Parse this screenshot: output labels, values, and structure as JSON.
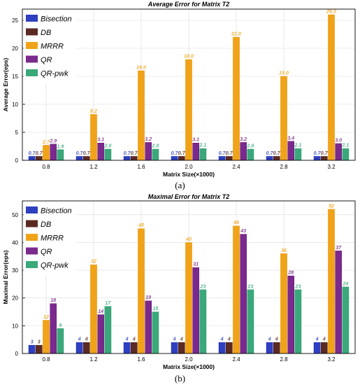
{
  "captions": {
    "a": "(a)",
    "b": "(b)"
  },
  "colors": {
    "Bisection": "#2e3fbf",
    "DB": "#5a2a22",
    "MRRR": "#f0a318",
    "QR": "#7a2a8c",
    "QR-pwk": "#3aa87a"
  },
  "chart_data": [
    {
      "type": "bar",
      "title": "Average Error for Matrix T2",
      "xlabel": "Matrix Size(×1000)",
      "ylabel": "Average Error(eps)",
      "ylim": [
        0,
        27
      ],
      "yticks": [
        "0",
        "5",
        "10",
        "15",
        "20",
        "25"
      ],
      "ytick_values": [
        0,
        5,
        10,
        15,
        20,
        25
      ],
      "categories": [
        "0.8",
        "1.2",
        "1.6",
        "2.0",
        "2.4",
        "2.8",
        "3.2"
      ],
      "legend_position": "top-left",
      "grid": true,
      "series": [
        {
          "name": "Bisection",
          "values": [
            0.7,
            0.7,
            0.7,
            0.7,
            0.7,
            0.7,
            0.7
          ],
          "labels": [
            "0.7",
            "0.7",
            "0.7",
            "0.7",
            "0.7",
            "0.7",
            "0.7"
          ]
        },
        {
          "name": "DB",
          "values": [
            0.7,
            0.7,
            0.7,
            0.7,
            0.7,
            0.7,
            0.7
          ],
          "labels": [
            "0.7",
            "0.7",
            "0.7",
            "0.7",
            "0.7",
            "0.7",
            "0.7"
          ]
        },
        {
          "name": "MRRR",
          "values": [
            2.7,
            8.2,
            16.0,
            18.0,
            22.0,
            15.0,
            26.0
          ],
          "labels": [
            "2.7",
            "8.2",
            "16.0",
            "18.0",
            "22.0",
            "15.0",
            "26.0"
          ]
        },
        {
          "name": "QR",
          "values": [
            2.9,
            3.1,
            3.2,
            3.1,
            3.2,
            3.4,
            3.0
          ],
          "labels": [
            "2.9",
            "3.1",
            "3.2",
            "3.1",
            "3.2",
            "3.4",
            "3.0"
          ]
        },
        {
          "name": "QR-pwk",
          "values": [
            1.9,
            2.0,
            2.0,
            2.1,
            2.0,
            2.1,
            2.1
          ],
          "labels": [
            "1.9",
            "2.0",
            "2.0",
            "2.1",
            "2.0",
            "2.1",
            "2.1"
          ]
        }
      ]
    },
    {
      "type": "bar",
      "title": "Maximal Error for Matrix T2",
      "xlabel": "Matrix Size(×1000)",
      "ylabel": "Maximal Error(eps)",
      "ylim": [
        0,
        55
      ],
      "yticks": [
        "0",
        "10",
        "20",
        "30",
        "40",
        "50"
      ],
      "ytick_values": [
        0,
        10,
        20,
        30,
        40,
        50
      ],
      "categories": [
        "0.8",
        "1.2",
        "1.6",
        "2.0",
        "2.4",
        "2.8",
        "3.2"
      ],
      "legend_position": "top-left",
      "grid": true,
      "series": [
        {
          "name": "Bisection",
          "values": [
            3,
            4,
            4,
            4,
            4,
            4,
            4
          ],
          "labels": [
            "3",
            "4",
            "4",
            "4",
            "4",
            "4",
            "4"
          ]
        },
        {
          "name": "DB",
          "values": [
            3,
            4,
            4,
            4,
            4,
            4,
            4
          ],
          "labels": [
            "3",
            "4",
            "4",
            "4",
            "4",
            "4",
            "4"
          ]
        },
        {
          "name": "MRRR",
          "values": [
            12,
            32,
            45,
            40,
            46,
            36,
            52
          ],
          "labels": [
            "12",
            "32",
            "45",
            "40",
            "46",
            "36",
            "52"
          ]
        },
        {
          "name": "QR",
          "values": [
            18,
            14,
            19,
            31,
            43,
            28,
            37
          ],
          "labels": [
            "18",
            "14",
            "19",
            "31",
            "43",
            "28",
            "37"
          ]
        },
        {
          "name": "QR-pwk",
          "values": [
            9,
            17,
            15,
            23,
            23,
            23,
            24
          ],
          "labels": [
            "9",
            "17",
            "15",
            "23",
            "23",
            "23",
            "24"
          ]
        }
      ]
    }
  ]
}
